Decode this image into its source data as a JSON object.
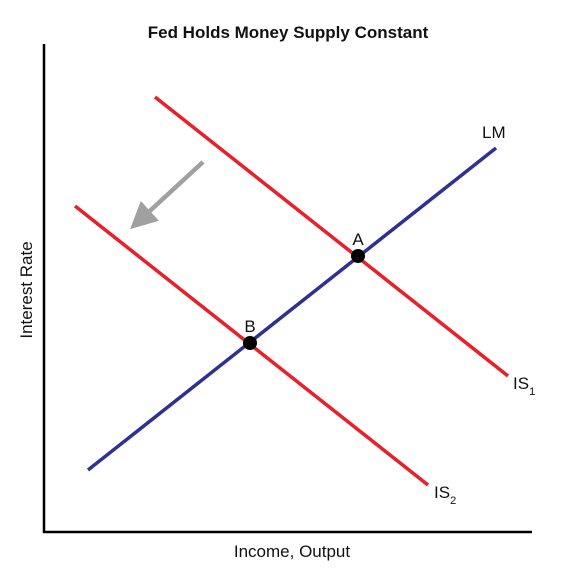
{
  "diagram": {
    "title": "Fed Holds Money Supply Constant",
    "x_axis_label": "Income, Output",
    "y_axis_label": "Interest Rate",
    "curves": {
      "lm": {
        "label": "LM",
        "color": "#2e3192"
      },
      "is1": {
        "label": "IS",
        "subscript": "1",
        "color": "#e8202a"
      },
      "is2": {
        "label": "IS",
        "subscript": "2",
        "color": "#e8202a"
      }
    },
    "points": {
      "a": {
        "label": "A"
      },
      "b": {
        "label": "B"
      }
    },
    "shift_arrow": {
      "color": "#a0a0a0"
    },
    "axis_color": "#000000"
  }
}
